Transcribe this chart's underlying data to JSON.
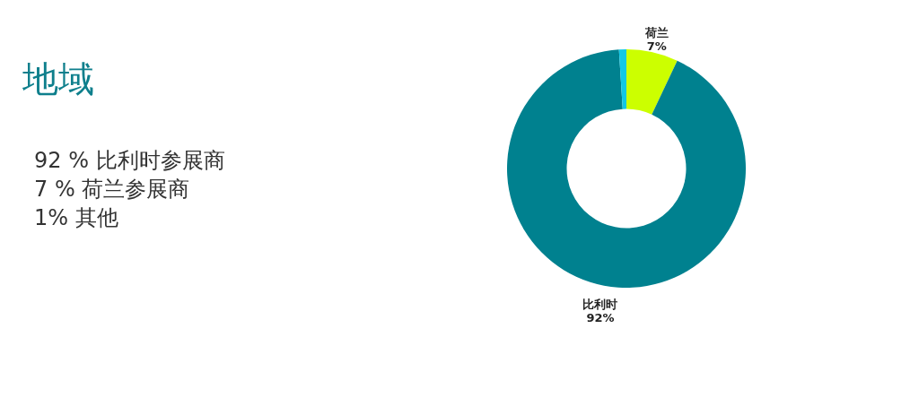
{
  "chart_data": {
    "type": "donut",
    "title": "地域",
    "categories": [
      "荷兰",
      "比利时",
      null
    ],
    "values": [
      7,
      92,
      1
    ],
    "colors": [
      "#ccff00",
      "#00818f",
      "#12c8e6"
    ],
    "value_labels": [
      "7%",
      "92%",
      null
    ],
    "annotations": [
      "92 % 比利时参展商",
      "7 % 荷兰参展商",
      "1% 其他"
    ]
  }
}
